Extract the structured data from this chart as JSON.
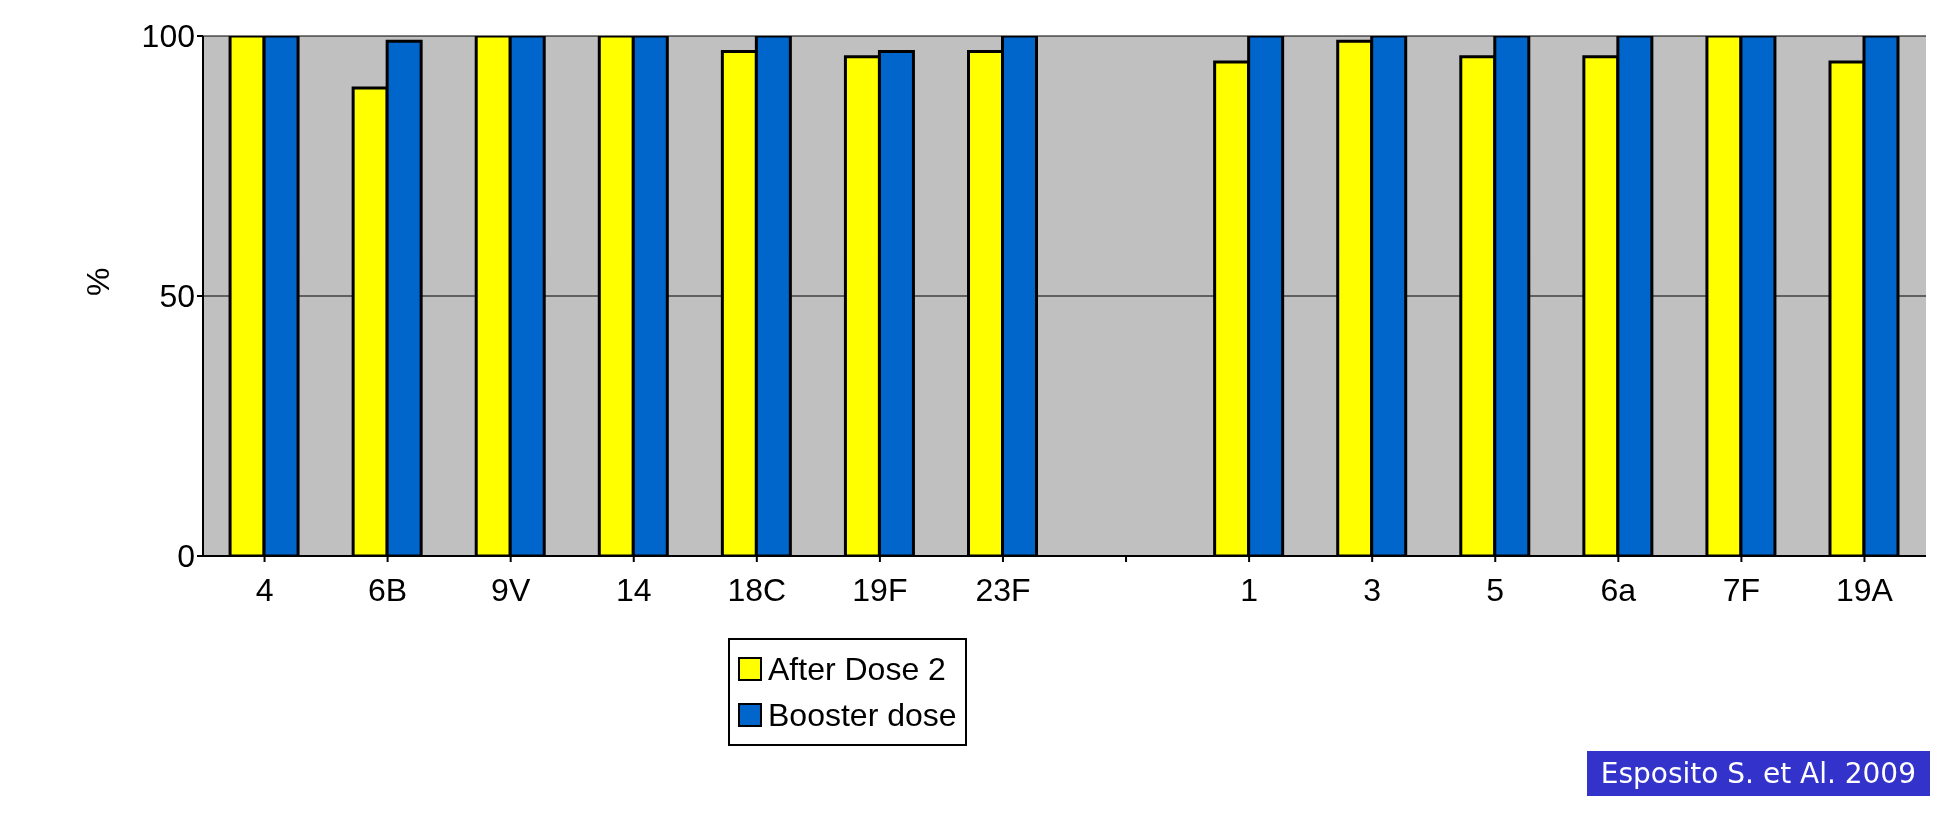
{
  "chart_data": {
    "type": "bar",
    "ylabel": "%",
    "categories": [
      "4",
      "6B",
      "9V",
      "14",
      "18C",
      "19F",
      "23F",
      null,
      "1",
      "3",
      "5",
      "6a",
      "7F",
      "19A"
    ],
    "series": [
      {
        "name": "After Dose 2",
        "color": "#ffff00",
        "values": [
          100,
          90,
          100,
          100,
          97,
          96,
          97,
          null,
          95,
          99,
          96,
          96,
          100,
          95
        ]
      },
      {
        "name": "Booster dose",
        "color": "#0066cc",
        "values": [
          100,
          99,
          100,
          100,
          100,
          97,
          100,
          null,
          100,
          100,
          100,
          100,
          100,
          100
        ]
      }
    ],
    "ylim": [
      0,
      100
    ],
    "yticks": [
      0,
      50,
      100
    ],
    "grid": "y",
    "legend": "bottom",
    "annotations": [
      "Esposito S. et Al. 2009"
    ]
  }
}
